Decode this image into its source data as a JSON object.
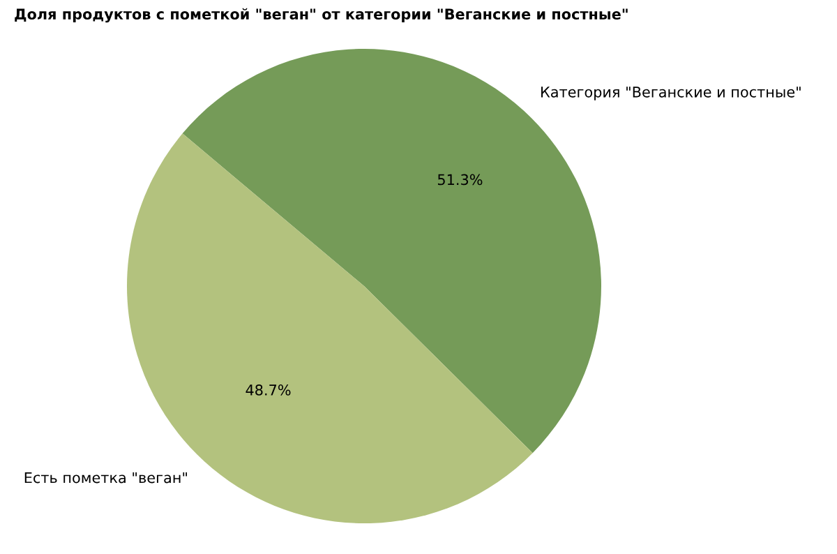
{
  "chart_data": {
    "type": "pie",
    "title": "Доля продуктов с пометкой \"веган\" от категории \"Веганские и постные\"",
    "categories": [
      "Категория \"Веганские и постные\"",
      "Есть пометка \"веган\""
    ],
    "values": [
      51.3,
      48.7
    ],
    "colors": [
      "#759b58",
      "#b3c27e"
    ],
    "value_labels": [
      "51.3%",
      "48.7%"
    ],
    "legend": false
  }
}
